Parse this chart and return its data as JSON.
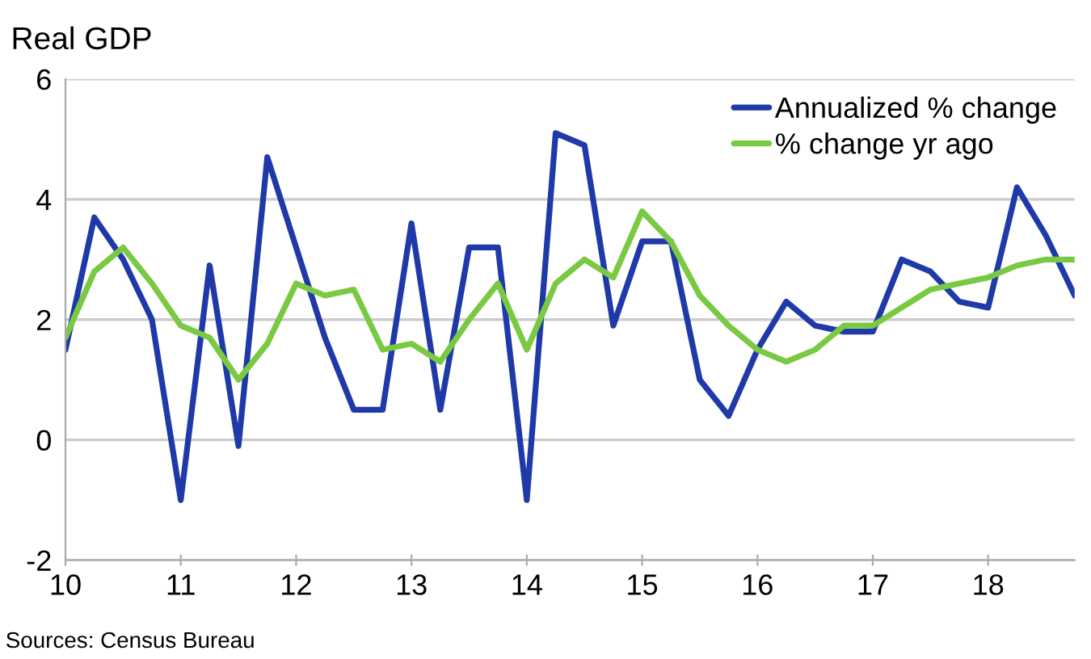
{
  "chart_data": {
    "type": "line",
    "title": "Real GDP",
    "x": [
      10,
      10.25,
      10.5,
      10.75,
      11,
      11.25,
      11.5,
      11.75,
      12,
      12.25,
      12.5,
      12.75,
      13,
      13.25,
      13.5,
      13.75,
      14,
      14.25,
      14.5,
      14.75,
      15,
      15.25,
      15.5,
      15.75,
      16,
      16.25,
      16.5,
      16.75,
      17,
      17.25,
      17.5,
      17.75,
      18,
      18.25,
      18.5,
      18.75
    ],
    "series": [
      {
        "name": "Annualized % change",
        "color": "#1f3aa8",
        "values": [
          1.5,
          3.7,
          3.0,
          2.0,
          -1.0,
          2.9,
          -0.1,
          4.7,
          3.2,
          1.7,
          0.5,
          0.5,
          3.6,
          0.5,
          3.2,
          3.2,
          -1.0,
          5.1,
          4.9,
          1.9,
          3.3,
          3.3,
          1.0,
          0.4,
          1.5,
          2.3,
          1.9,
          1.8,
          1.8,
          3.0,
          2.8,
          2.3,
          2.2,
          4.2,
          3.4,
          2.4
        ]
      },
      {
        "name": "% change yr ago",
        "color": "#7ac943",
        "values": [
          1.7,
          2.8,
          3.2,
          2.6,
          1.9,
          1.7,
          1.0,
          1.6,
          2.6,
          2.4,
          2.5,
          1.5,
          1.6,
          1.3,
          2.0,
          2.6,
          1.5,
          2.6,
          3.0,
          2.7,
          3.8,
          3.3,
          2.4,
          1.9,
          1.5,
          1.3,
          1.5,
          1.9,
          1.9,
          2.2,
          2.5,
          2.6,
          2.7,
          2.9,
          3.0,
          3.0
        ]
      }
    ],
    "xlim": [
      10,
      18.75
    ],
    "xticks": [
      10,
      11,
      12,
      13,
      14,
      15,
      16,
      17,
      18
    ],
    "ylim": [
      -2,
      6
    ],
    "yticks": [
      -2,
      0,
      2,
      4,
      6
    ],
    "grid": "y",
    "legend": "top right",
    "marker": "none",
    "line_style": "solid",
    "annotations": [
      "Sources: Census Bureau"
    ]
  }
}
